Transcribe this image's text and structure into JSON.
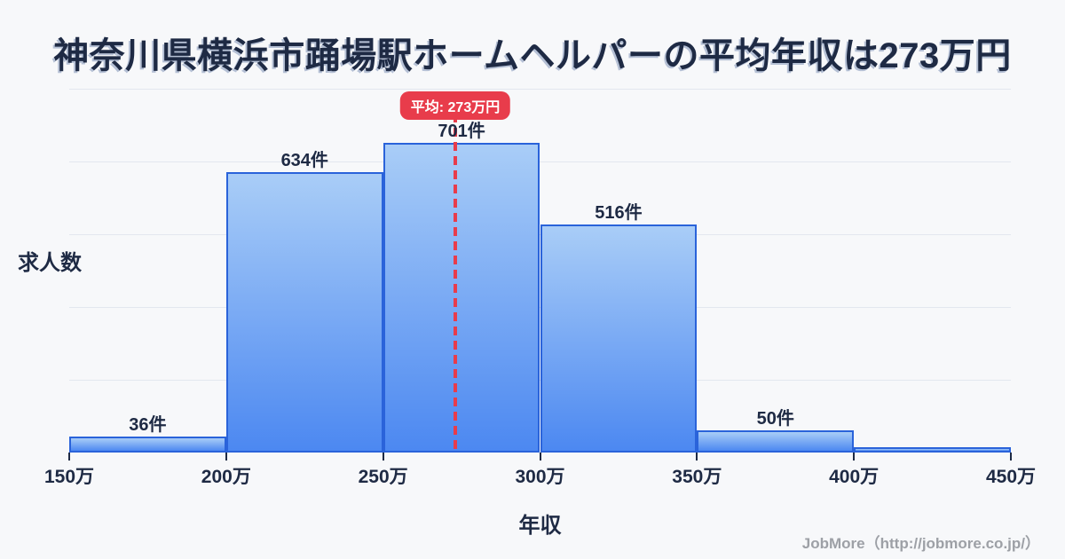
{
  "title": "神奈川県横浜市踊場駅ホームヘルパーの平均年収は273万円",
  "axis": {
    "x_label": "年収",
    "y_label": "求人数"
  },
  "footer": {
    "credit": "JobMore（http://jobmore.co.jp/）"
  },
  "colors": {
    "background": "#f7f8fa",
    "title_text": "#1e2a44",
    "bar_fill_top": "#a9cdf7",
    "bar_fill_bottom": "#4c88f1",
    "bar_border": "#2a63da",
    "grid_line": "#e3e7ef",
    "mean_red": "#e83c4b",
    "badge_text": "#ffffff",
    "label_text": "#1e2a44",
    "footer_text": "#9da0a6"
  },
  "chart_data": {
    "type": "bar",
    "subtype": "histogram",
    "title": "神奈川県横浜市踊場駅ホームヘルパーの平均年収は273万円",
    "xlabel": "年収",
    "ylabel": "求人数",
    "x_unit": "万円",
    "y_unit": "件",
    "xlim": [
      150,
      450
    ],
    "grid": "faint horizontal gridlines, no y tick labels",
    "legend": "none",
    "x_tick_labels": [
      "150万",
      "200万",
      "250万",
      "300万",
      "350万",
      "400万",
      "450万"
    ],
    "categories": [
      "150万-200万",
      "200万-250万",
      "250万-300万",
      "300万-350万",
      "350万-400万",
      "400万-450万"
    ],
    "values": [
      36,
      634,
      701,
      516,
      50,
      12
    ],
    "bins": [
      {
        "from": 150,
        "to": 200,
        "count": 36,
        "label": "36件"
      },
      {
        "from": 200,
        "to": 250,
        "count": 634,
        "label": "634件"
      },
      {
        "from": 250,
        "to": 300,
        "count": 701,
        "label": "701件"
      },
      {
        "from": 300,
        "to": 350,
        "count": 516,
        "label": "516件"
      },
      {
        "from": 350,
        "to": 400,
        "count": 50,
        "label": "50件"
      },
      {
        "from": 400,
        "to": 450,
        "count": 12,
        "label": ""
      }
    ],
    "mean": {
      "value": 273,
      "label": "平均: 273万円"
    }
  }
}
